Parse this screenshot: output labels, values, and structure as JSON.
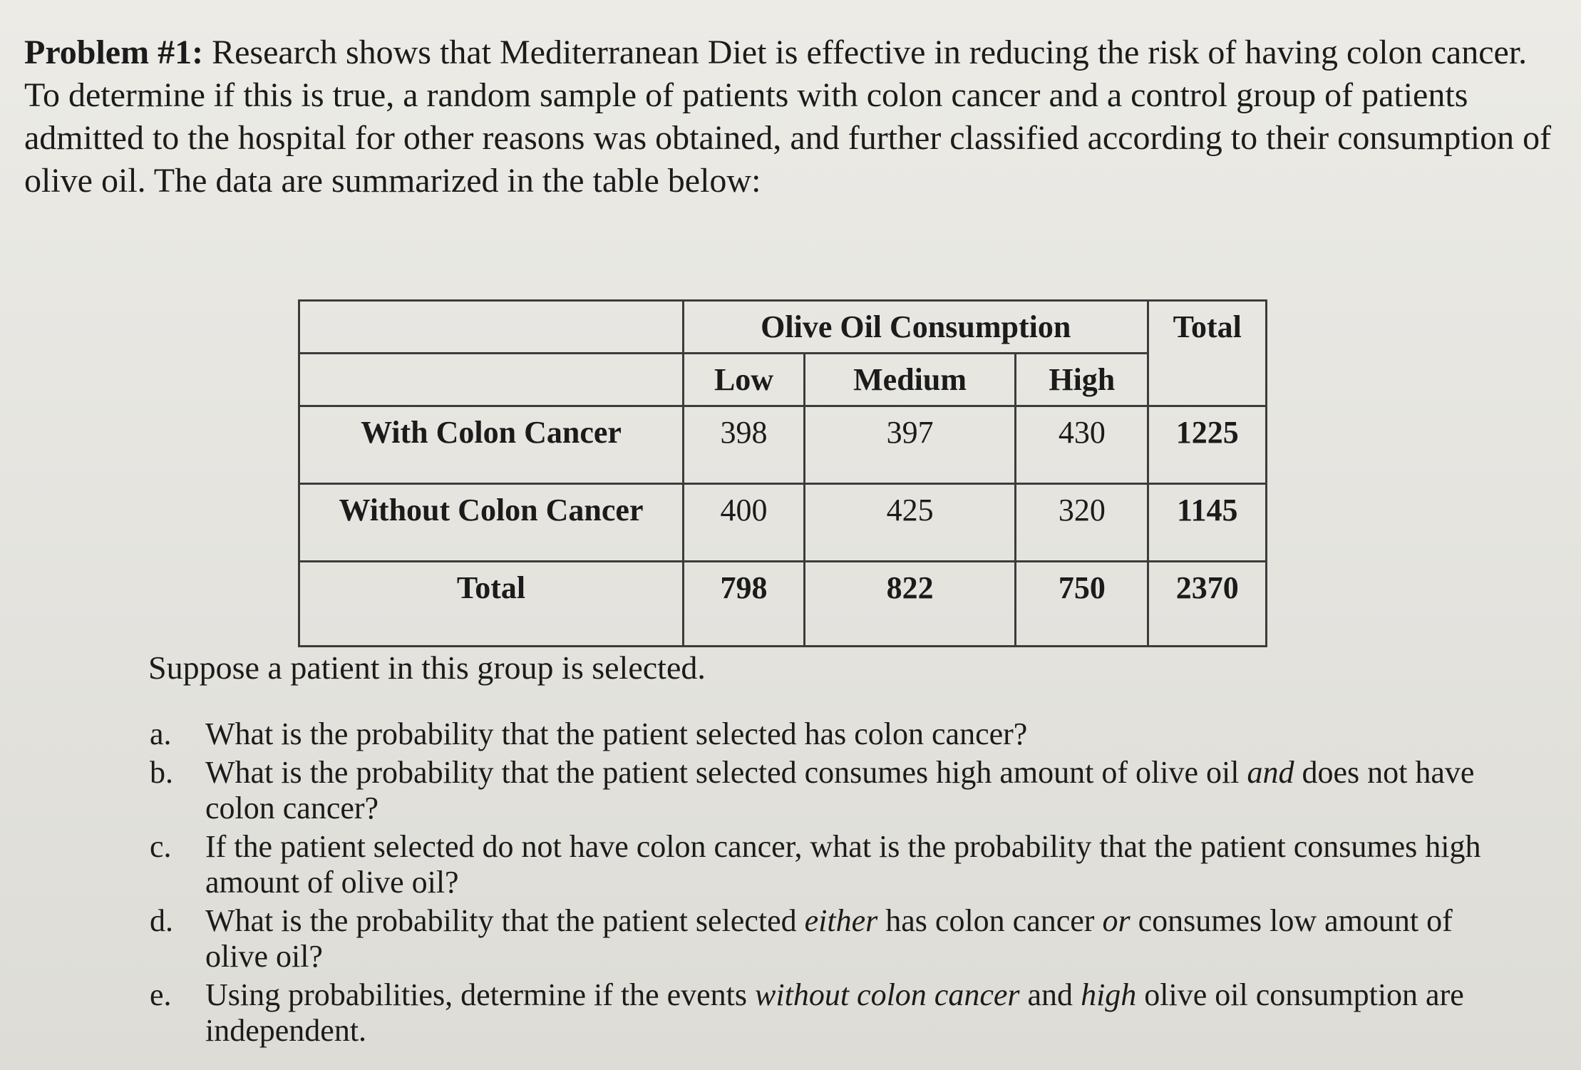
{
  "problem": {
    "label": "Problem #1:",
    "intro": "Research shows that Mediterranean Diet is effective in reducing the risk of having colon cancer. To determine if this is true, a random sample of patients with colon cancer and a control group of patients admitted to the hospital for other reasons was obtained, and further classified according to their consumption of olive oil. The data are summarized in the table below:"
  },
  "table": {
    "group_header": "Olive Oil Consumption",
    "total_header": "Total",
    "columns": [
      "Low",
      "Medium",
      "High"
    ],
    "rows": [
      {
        "label": "With Colon Cancer",
        "values": [
          "398",
          "397",
          "430"
        ],
        "total": "1225"
      },
      {
        "label": "Without Colon Cancer",
        "values": [
          "400",
          "425",
          "320"
        ],
        "total": "1145"
      },
      {
        "label": "Total",
        "values": [
          "798",
          "822",
          "750"
        ],
        "total": "2370"
      }
    ]
  },
  "prompt": "Suppose a patient in this group is selected.",
  "questions": [
    {
      "letter": "a.",
      "parts": [
        "What is the probability that the patient selected has colon cancer?"
      ]
    },
    {
      "letter": "b.",
      "parts": [
        "What is the probability that the patient selected consumes high amount of olive oil ",
        "and",
        " does not have colon cancer?"
      ]
    },
    {
      "letter": "c.",
      "parts": [
        "If the patient selected do not have colon cancer, what is the probability that the patient consumes high amount of olive oil?"
      ]
    },
    {
      "letter": "d.",
      "parts": [
        "What is the probability that the patient selected ",
        "either",
        " has colon cancer ",
        "or",
        " consumes low amount of olive oil?"
      ]
    },
    {
      "letter": "e.",
      "parts": [
        "Using probabilities, determine if the events ",
        "without colon cancer",
        " and ",
        "high",
        " olive oil consumption are independent."
      ]
    }
  ]
}
